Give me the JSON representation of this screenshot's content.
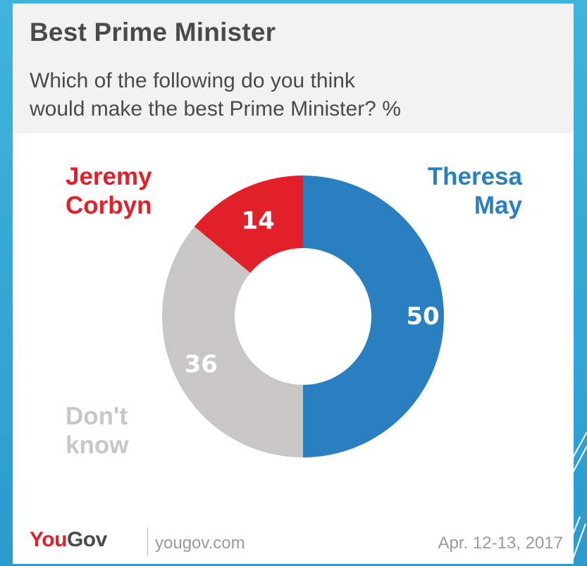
{
  "header": {
    "title": "Best Prime Minister",
    "subtitle_line1": "Which of the following do you think",
    "subtitle_line2": "would make the best Prime Minister? %"
  },
  "chart_data": {
    "type": "pie",
    "title": "Best Prime Minister",
    "subtitle": "Which of the following do you think would make the best Prime Minister? %",
    "donut": true,
    "slices": [
      {
        "name_line1": "Theresa",
        "name_line2": "May",
        "value": 50,
        "color": "#2a7fc1"
      },
      {
        "name_line1": "Don't",
        "name_line2": "know",
        "value": 36,
        "color": "#c9c6c6"
      },
      {
        "name_line1": "Jeremy",
        "name_line2": "Corbyn",
        "value": 14,
        "color": "#e1202a"
      }
    ]
  },
  "footer": {
    "logo_you": "You",
    "logo_gov": "Gov",
    "site": "yougov.com",
    "date": "Apr. 12-13, 2017"
  }
}
